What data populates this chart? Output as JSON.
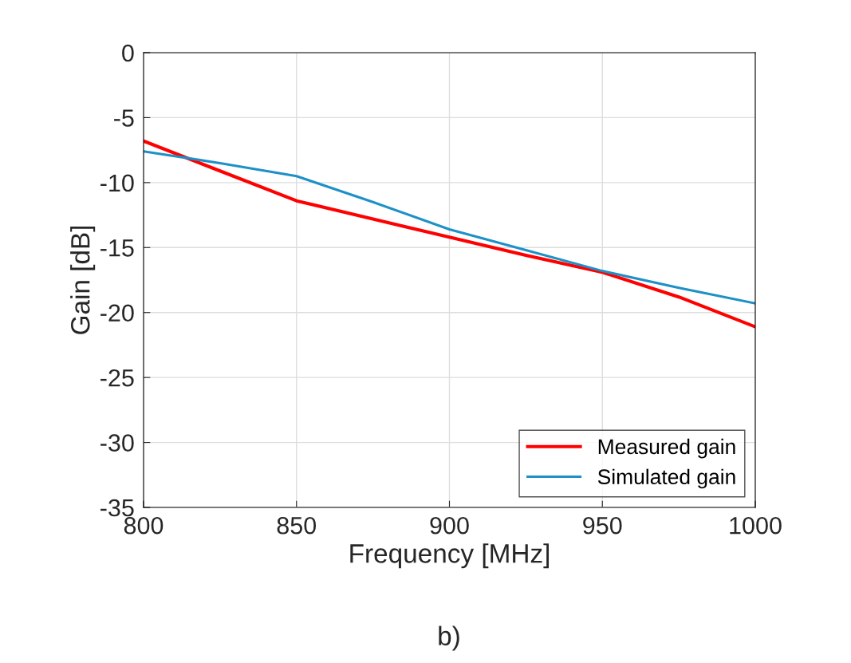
{
  "chart_data": {
    "type": "line",
    "xlabel": "Frequency [MHz]",
    "ylabel": "Gain [dB]",
    "annotations": [
      "b)"
    ],
    "xlim": [
      800,
      1000
    ],
    "xticks": [
      800,
      850,
      900,
      950,
      1000
    ],
    "ylim": [
      -35,
      0
    ],
    "yticks": [
      -35,
      -30,
      -25,
      -20,
      -15,
      -10,
      -5,
      0
    ],
    "grid": true,
    "legend": "bottom right",
    "line_style": "solid",
    "series": [
      {
        "name": "Measured gain",
        "color": "#ff0000",
        "x": [
          800,
          825,
          850,
          875,
          900,
          925,
          950,
          975,
          1000
        ],
        "values": [
          -6.8,
          -9.1,
          -11.4,
          -12.8,
          -14.2,
          -15.6,
          -16.9,
          -18.8,
          -21.1
        ]
      },
      {
        "name": "Simulated gain",
        "color": "#1e90c8",
        "x": [
          800,
          825,
          850,
          875,
          900,
          925,
          950,
          975,
          1000
        ],
        "values": [
          -7.6,
          -8.5,
          -9.5,
          -11.5,
          -13.6,
          -15.2,
          -16.8,
          -18.1,
          -19.3
        ]
      }
    ]
  }
}
